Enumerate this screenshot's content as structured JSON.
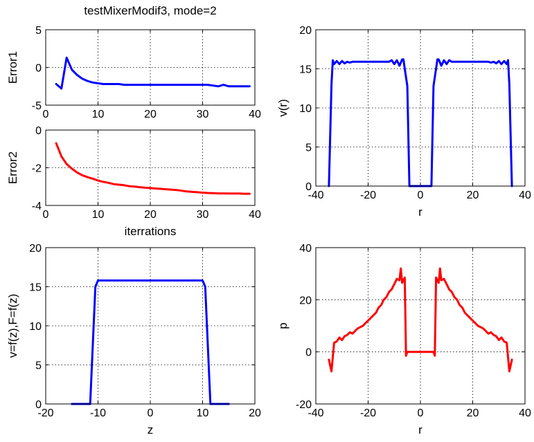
{
  "chart_data": [
    {
      "type": "line",
      "title": "testMixerModif3, mode=2",
      "xlabel": "",
      "ylabel": "Error1",
      "xlim": [
        0,
        40
      ],
      "ylim": [
        -5,
        5
      ],
      "xticks": [
        "0",
        "10",
        "20",
        "30",
        "40"
      ],
      "yticks": [
        "-5",
        "0",
        "5"
      ],
      "grid": true,
      "series": [
        {
          "color": "#0000ff",
          "x": [
            2,
            3,
            4,
            5,
            6,
            7,
            8,
            9,
            10,
            11,
            12,
            13,
            14,
            15,
            16,
            17,
            18,
            19,
            20,
            21,
            22,
            23,
            24,
            25,
            26,
            27,
            28,
            29,
            30,
            31,
            32,
            33,
            34,
            35,
            36,
            37,
            38,
            39
          ],
          "y": [
            -2.2,
            -2.8,
            1.3,
            -0.3,
            -1.0,
            -1.5,
            -1.8,
            -2.0,
            -2.1,
            -2.2,
            -2.2,
            -2.2,
            -2.2,
            -2.3,
            -2.3,
            -2.3,
            -2.3,
            -2.3,
            -2.3,
            -2.3,
            -2.3,
            -2.3,
            -2.3,
            -2.3,
            -2.3,
            -2.3,
            -2.3,
            -2.3,
            -2.3,
            -2.3,
            -2.4,
            -2.5,
            -2.3,
            -2.5,
            -2.5,
            -2.5,
            -2.5,
            -2.5
          ]
        }
      ]
    },
    {
      "type": "line",
      "title": "",
      "xlabel": "iterrations",
      "ylabel": "Error2",
      "xlim": [
        0,
        40
      ],
      "ylim": [
        -4,
        0
      ],
      "xticks": [
        "0",
        "10",
        "20",
        "30",
        "40"
      ],
      "yticks": [
        "-4",
        "-2",
        "0"
      ],
      "grid": true,
      "series": [
        {
          "color": "#ff0000",
          "x": [
            2,
            3,
            4,
            5,
            6,
            7,
            8,
            9,
            10,
            11,
            12,
            13,
            14,
            15,
            16,
            17,
            18,
            19,
            20,
            21,
            22,
            23,
            24,
            25,
            26,
            27,
            28,
            29,
            30,
            31,
            32,
            33,
            34,
            35,
            36,
            37,
            38,
            39
          ],
          "y": [
            -0.7,
            -1.4,
            -1.8,
            -2.05,
            -2.25,
            -2.4,
            -2.5,
            -2.58,
            -2.68,
            -2.75,
            -2.8,
            -2.87,
            -2.9,
            -2.93,
            -2.98,
            -3.0,
            -3.03,
            -3.06,
            -3.08,
            -3.1,
            -3.12,
            -3.14,
            -3.16,
            -3.18,
            -3.22,
            -3.26,
            -3.28,
            -3.3,
            -3.32,
            -3.34,
            -3.35,
            -3.36,
            -3.36,
            -3.37,
            -3.37,
            -3.37,
            -3.38,
            -3.38
          ]
        }
      ]
    },
    {
      "type": "line",
      "title": "",
      "xlabel": "r",
      "ylabel": "v(r)",
      "xlim": [
        -40,
        40
      ],
      "ylim": [
        0,
        20
      ],
      "xticks": [
        "-40",
        "-20",
        "0",
        "20",
        "40"
      ],
      "yticks": [
        "0",
        "5",
        "10",
        "15",
        "20"
      ],
      "grid": true,
      "series": [
        {
          "color": "#0000ff",
          "x": [
            -35,
            -34,
            -33.5,
            -33,
            -32,
            -31,
            -30,
            -29,
            -28,
            -27,
            -26,
            -25,
            -24,
            -23,
            -22,
            -21,
            -20,
            -19,
            -18,
            -17,
            -16,
            -15,
            -14,
            -13,
            -12,
            -11,
            -10,
            -9,
            -8,
            -7,
            -6.5,
            -6,
            -5,
            -4.2,
            4.2,
            5,
            6,
            6.5,
            7,
            8,
            9,
            10,
            11,
            12,
            13,
            14,
            15,
            16,
            17,
            18,
            19,
            20,
            21,
            22,
            23,
            24,
            25,
            26,
            27,
            28,
            29,
            30,
            31,
            32,
            33,
            33.5,
            34,
            35
          ],
          "y": [
            0,
            13,
            16.1,
            15.6,
            16.0,
            15.6,
            16.0,
            15.7,
            15.9,
            15.8,
            15.9,
            15.9,
            15.9,
            15.9,
            15.9,
            15.9,
            15.9,
            15.9,
            15.9,
            15.9,
            15.9,
            15.9,
            15.9,
            15.9,
            15.9,
            16.1,
            15.6,
            16.1,
            15.4,
            16.2,
            16.2,
            15.0,
            12.8,
            0,
            0,
            12.8,
            15.0,
            16.2,
            16.2,
            15.4,
            16.1,
            15.6,
            16.1,
            15.9,
            15.9,
            15.9,
            15.9,
            15.9,
            15.9,
            15.9,
            15.9,
            15.9,
            15.9,
            15.9,
            15.9,
            15.9,
            15.9,
            15.9,
            15.8,
            15.9,
            15.7,
            16.0,
            15.6,
            16.0,
            15.6,
            16.1,
            13,
            0
          ]
        }
      ]
    },
    {
      "type": "line",
      "title": "",
      "xlabel": "z",
      "ylabel": "v=f(z),F=f(z)",
      "xlim": [
        -20,
        20
      ],
      "ylim": [
        0,
        20
      ],
      "xticks": [
        "-20",
        "-10",
        "0",
        "10",
        "20"
      ],
      "yticks": [
        "0",
        "5",
        "10",
        "15",
        "20"
      ],
      "grid": true,
      "series": [
        {
          "color": "#0000ff",
          "x": [
            -15,
            -12,
            -11.5,
            -10.5,
            -10,
            10,
            10.5,
            11.5,
            12,
            15
          ],
          "y": [
            0,
            0,
            0,
            15,
            15.8,
            15.8,
            15,
            0,
            0,
            0
          ]
        }
      ]
    },
    {
      "type": "line",
      "title": "",
      "xlabel": "r",
      "ylabel": "p",
      "xlim": [
        -40,
        40
      ],
      "ylim": [
        -20,
        40
      ],
      "xticks": [
        "-40",
        "-20",
        "0",
        "20",
        "40"
      ],
      "yticks": [
        "-20",
        "0",
        "20",
        "40"
      ],
      "grid": true,
      "series": [
        {
          "color": "#ff0000",
          "x": [
            -35,
            -34,
            -33,
            -32,
            -31,
            -30,
            -29,
            -28,
            -27,
            -26,
            -25,
            -24,
            -23,
            -22,
            -21,
            -20,
            -19,
            -18,
            -17,
            -16,
            -15,
            -14,
            -13,
            -12,
            -11,
            -10,
            -9,
            -8,
            -7.5,
            -7,
            -6,
            -5.5,
            -5,
            -4,
            4,
            5,
            5.5,
            6,
            7,
            7.5,
            8,
            9,
            10,
            11,
            12,
            13,
            14,
            15,
            16,
            17,
            18,
            19,
            20,
            21,
            22,
            23,
            24,
            25,
            26,
            27,
            28,
            29,
            30,
            31,
            32,
            33,
            34,
            35
          ],
          "y": [
            -3,
            -7.5,
            3.5,
            4,
            5.5,
            4.5,
            6,
            6.5,
            7.5,
            7,
            8,
            9,
            9.5,
            10,
            11,
            12,
            13,
            14,
            15,
            17,
            18,
            20,
            21,
            23,
            24,
            26,
            28,
            27.5,
            32,
            26.5,
            28.5,
            -1.5,
            0,
            0,
            0,
            0,
            -1.5,
            28.5,
            26.5,
            32,
            27.5,
            28,
            26,
            24,
            23,
            21,
            20,
            18,
            17,
            15,
            14,
            13,
            12,
            11,
            10,
            9.5,
            9,
            8,
            7,
            7.5,
            6.5,
            6,
            4.5,
            5.5,
            4,
            3.5,
            -7.5,
            -3
          ]
        }
      ]
    }
  ]
}
